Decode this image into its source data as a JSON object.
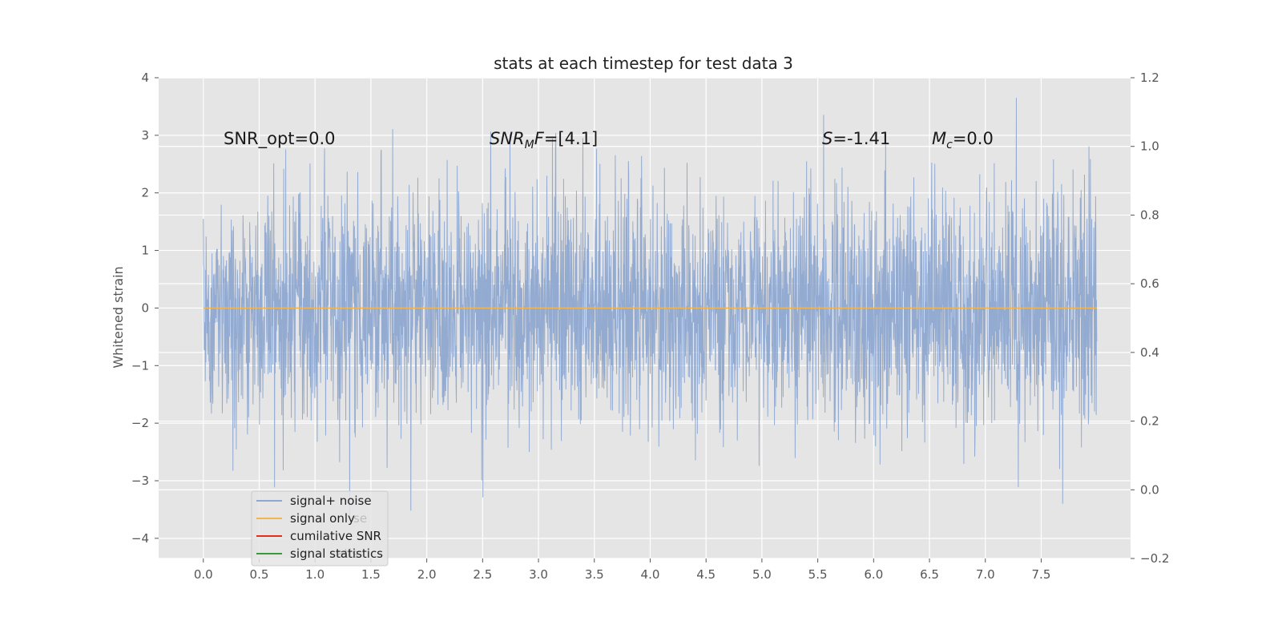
{
  "chart_data": {
    "type": "line",
    "title": "stats at each timestep for test data 3",
    "xlabel": "",
    "ylabel": "Whitened strain",
    "xlim": [
      -0.4,
      8.3
    ],
    "ylim": [
      -4.35,
      4.0
    ],
    "y2lim": [
      -0.2,
      1.2
    ],
    "x_ticks": [
      "0.0",
      "0.5",
      "1.0",
      "1.5",
      "2.0",
      "2.5",
      "3.0",
      "3.5",
      "4.0",
      "4.5",
      "5.0",
      "5.5",
      "6.0",
      "6.5",
      "7.0",
      "7.5"
    ],
    "y_ticks": [
      "4",
      "3",
      "2",
      "1",
      "0",
      "−1",
      "−2",
      "−3",
      "−4"
    ],
    "y2_ticks": [
      "1.2",
      "1.0",
      "0.8",
      "0.6",
      "0.4",
      "0.2",
      "0.0",
      "−0.2"
    ],
    "grid": true,
    "legend_position": "lower-left",
    "background": "#e5e5e5",
    "series": [
      {
        "name": "signal+ noise",
        "color": "#8fa8d0",
        "kind": "noise",
        "x_range": [
          0.0,
          8.0
        ],
        "amplitude_envelope": [
          -4.0,
          3.65
        ]
      },
      {
        "name": "signal only",
        "color": "#f0b450",
        "kind": "flat",
        "x": [
          0.0,
          8.0
        ],
        "y": [
          0.0,
          0.0
        ]
      },
      {
        "name": "cumilative SNR",
        "color": "#e0301e",
        "kind": "empty"
      },
      {
        "name": "signal statistics",
        "color": "#3a9a3a",
        "kind": "empty"
      }
    ],
    "annotations": [
      {
        "text": "SNR_opt=0.0",
        "x": 0.2,
        "y": 2.85
      },
      {
        "text": "F=[4.1]",
        "prefix": "SNR",
        "sub": "M",
        "x": 2.6,
        "y": 2.85
      },
      {
        "text": "=-1.41",
        "prefix": "S",
        "x": 5.6,
        "y": 2.85
      },
      {
        "text": "=0.0",
        "prefix": "M",
        "sub": "c",
        "x": 6.6,
        "y": 2.85
      }
    ],
    "legend_ghost": [
      "se",
      "atis"
    ],
    "seed": 3
  }
}
